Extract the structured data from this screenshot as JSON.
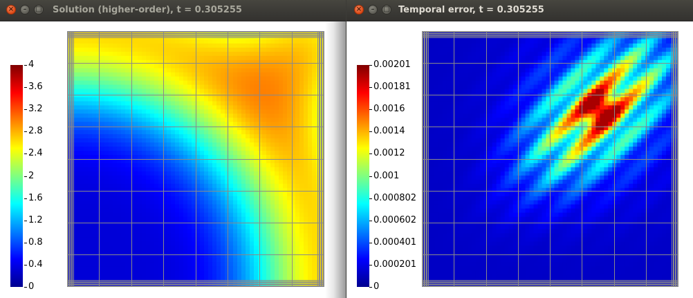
{
  "windows": [
    {
      "title": "Solution (higher-order), t = 0.305255",
      "colorbar_ticks": [
        "4",
        "3.6",
        "3.2",
        "2.8",
        "2.4",
        "2",
        "1.6",
        "1.2",
        "0.8",
        "0.4",
        "0"
      ]
    },
    {
      "title": "Temporal error, t = 0.305255",
      "colorbar_ticks": [
        "0.00201",
        "0.00181",
        "0.0016",
        "0.0014",
        "0.0012",
        "0.001",
        "0.000802",
        "0.000602",
        "0.000401",
        "0.000201",
        "0"
      ]
    }
  ],
  "window_buttons": {
    "close": "×",
    "minimize": "–",
    "maximize": "□"
  },
  "colormap": [
    "#00008f",
    "#0000ff",
    "#0080ff",
    "#00ffff",
    "#80ff80",
    "#ffff00",
    "#ff8000",
    "#ff0000",
    "#800000"
  ],
  "mesh_color": "#8a8a8a",
  "chart_data": [
    {
      "type": "heatmap",
      "title": "Solution (higher-order), t = 0.305255",
      "colorbar": {
        "min": 0,
        "max": 4,
        "ticks": [
          0,
          0.4,
          0.8,
          1.2,
          1.6,
          2,
          2.4,
          2.8,
          3.2,
          3.6,
          4
        ]
      },
      "field": "solution",
      "grid": true
    },
    {
      "type": "heatmap",
      "title": "Temporal error, t = 0.305255",
      "colorbar": {
        "min": 0,
        "max": 0.00201,
        "ticks": [
          0,
          0.000201,
          0.000401,
          0.000602,
          0.000802,
          0.001,
          0.0012,
          0.0014,
          0.0016,
          0.00181,
          0.00201
        ]
      },
      "field": "temporal-error",
      "grid": true
    }
  ]
}
